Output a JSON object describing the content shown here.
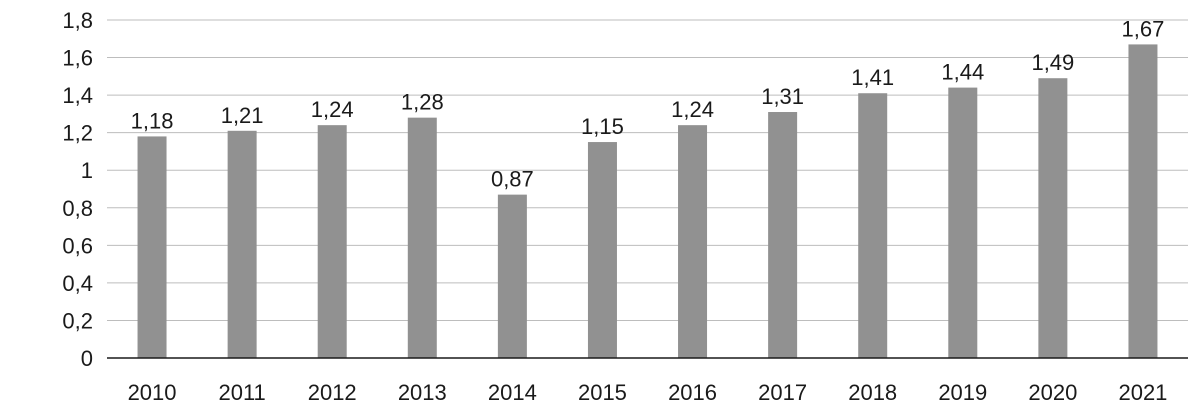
{
  "chart_data": {
    "type": "bar",
    "title": "",
    "xlabel": "",
    "ylabel": "",
    "categories": [
      "2010",
      "2011",
      "2012",
      "2013",
      "2014",
      "2015",
      "2016",
      "2017",
      "2018",
      "2019",
      "2020",
      "2021"
    ],
    "values": [
      1.18,
      1.21,
      1.24,
      1.28,
      0.87,
      1.15,
      1.24,
      1.31,
      1.41,
      1.44,
      1.49,
      1.67
    ],
    "value_labels": [
      "1,18",
      "1,21",
      "1,24",
      "1,28",
      "0,87",
      "1,15",
      "1,24",
      "1,31",
      "1,41",
      "1,44",
      "1,49",
      "1,67"
    ],
    "ylim": [
      0,
      1.8
    ],
    "yticks": [
      0,
      0.2,
      0.4,
      0.6,
      0.8,
      1,
      1.2,
      1.4,
      1.6,
      1.8
    ],
    "ytick_labels": [
      "0",
      "0,2",
      "0,4",
      "0,6",
      "0,8",
      "1",
      "1,2",
      "1,4",
      "1,6",
      "1,8"
    ],
    "grid": true,
    "legend": "none",
    "colors": {
      "bar": "#919191",
      "grid": "#bdbdbd",
      "axis": "#1a1a1a"
    }
  }
}
